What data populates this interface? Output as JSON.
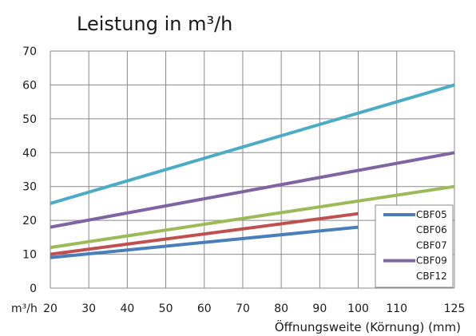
{
  "chart_data": {
    "type": "line",
    "title": "Leistung in m³/h",
    "xlabel": "Öffnungsweite (Körnung)  (mm)",
    "ylabel_unit": "m³/h",
    "xlim": [
      20,
      125
    ],
    "ylim": [
      0,
      70
    ],
    "x_ticks": [
      20,
      30,
      40,
      50,
      60,
      70,
      80,
      90,
      100,
      110,
      125
    ],
    "x_tick_labels": [
      "20",
      "30",
      "40",
      "50",
      "60",
      "70",
      "80",
      "90",
      "100",
      "110",
      "125"
    ],
    "y_ticks": [
      0,
      10,
      20,
      30,
      40,
      50,
      60,
      70
    ],
    "y_tick_labels": [
      "0",
      "10",
      "20",
      "30",
      "40",
      "50",
      "60",
      "70"
    ],
    "grid": true,
    "legend_position": "bottom-right",
    "series": [
      {
        "name": "CBF05",
        "color": "#4a7ebb",
        "points": [
          [
            20,
            9
          ],
          [
            100,
            18
          ]
        ]
      },
      {
        "name": "CBF06",
        "color": "#c0504d",
        "points": [
          [
            20,
            10
          ],
          [
            100,
            22
          ]
        ]
      },
      {
        "name": "CBF07",
        "color": "#9bbb59",
        "points": [
          [
            20,
            12
          ],
          [
            125,
            30
          ]
        ]
      },
      {
        "name": "CBF09",
        "color": "#7f63a2",
        "points": [
          [
            20,
            18
          ],
          [
            125,
            40
          ]
        ]
      },
      {
        "name": "CBF12",
        "color": "#4bacc6",
        "points": [
          [
            20,
            25
          ],
          [
            125,
            60
          ]
        ]
      }
    ]
  }
}
